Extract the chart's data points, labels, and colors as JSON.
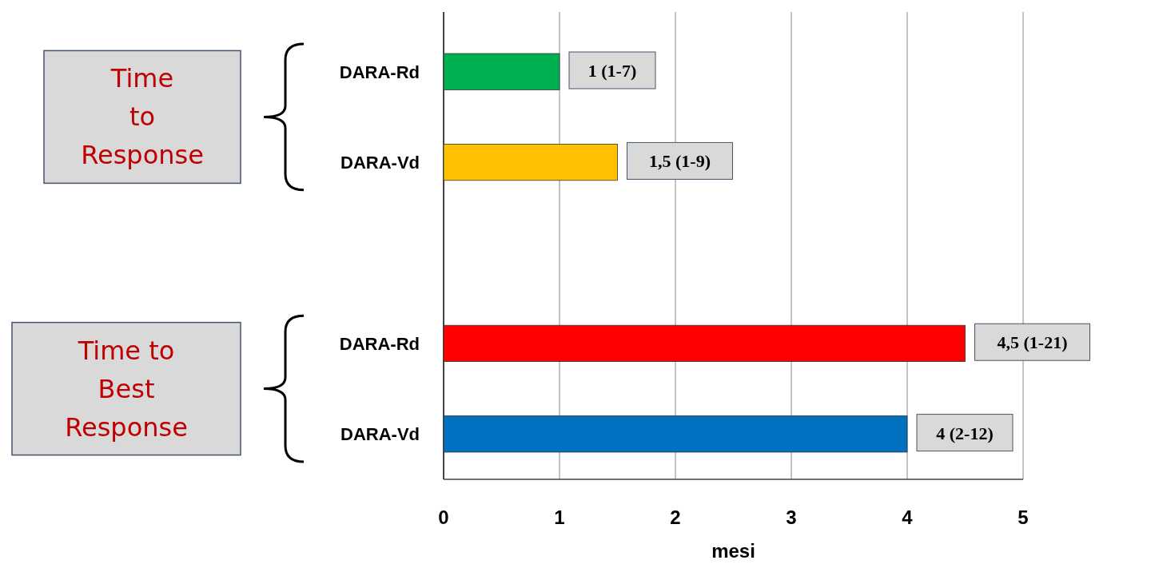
{
  "chart_data": {
    "type": "bar",
    "orientation": "horizontal",
    "categories": [
      "DARA-Rd",
      "DARA-Vd",
      null,
      "DARA-Rd",
      "DARA-Vd"
    ],
    "values": [
      1,
      1.5,
      null,
      4.5,
      4
    ],
    "colors": [
      "#00b050",
      "#ffc000",
      null,
      "#ff0000",
      "#0070c0"
    ],
    "value_labels": [
      "1 (1-7)",
      "1,5 (1-9)",
      null,
      "4,5 (1-21)",
      "4 (2-12)"
    ],
    "xlim": [
      0,
      5
    ],
    "xticks": [
      0,
      1,
      2,
      3,
      4,
      5
    ],
    "xlabel": "mesi",
    "grid": "x",
    "annotations": [
      "Time\nto\nResponse",
      "Time to\nBest\nResponse"
    ]
  }
}
